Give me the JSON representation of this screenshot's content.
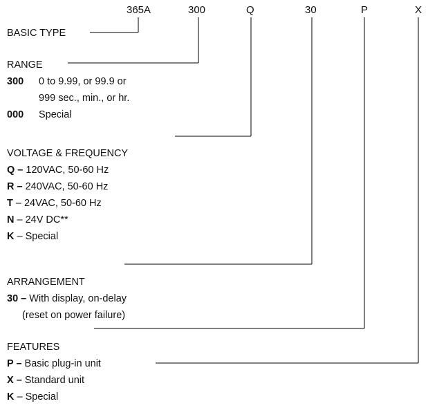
{
  "header": {
    "code_basic": "365A",
    "code_range": "300",
    "code_voltage": "Q",
    "code_arrangement": "30",
    "code_features": "P",
    "code_extra": "X"
  },
  "basic_type": {
    "label": "BASIC TYPE"
  },
  "range": {
    "heading": "RANGE",
    "items": [
      {
        "code": "300",
        "desc": "0 to 9.99, or 99.9 or",
        "desc2": "999 sec., min., or hr."
      },
      {
        "code": "000",
        "desc": "Special"
      }
    ]
  },
  "voltage": {
    "heading": "VOLTAGE & FREQUENCY",
    "items": [
      {
        "code": "Q –",
        "desc": " 120VAC, 50-60 Hz"
      },
      {
        "code": "R –",
        "desc": " 240VAC, 50-60 Hz"
      },
      {
        "code": "T",
        "desc": " – 24VAC, 50-60 Hz"
      },
      {
        "code": "N",
        "desc": " – 24V DC**"
      },
      {
        "code": "K",
        "desc": " – Special"
      }
    ]
  },
  "arrangement": {
    "heading": "ARRANGEMENT",
    "items": [
      {
        "code": "30 –",
        "desc": " With display, on-delay",
        "desc2": "(reset on power failure)"
      }
    ]
  },
  "features": {
    "heading": "FEATURES",
    "items": [
      {
        "code": "P –",
        "desc": " Basic plug-in unit"
      },
      {
        "code": "X –",
        "desc": " Standard unit"
      },
      {
        "code": "K",
        "desc": " – Special"
      }
    ]
  }
}
